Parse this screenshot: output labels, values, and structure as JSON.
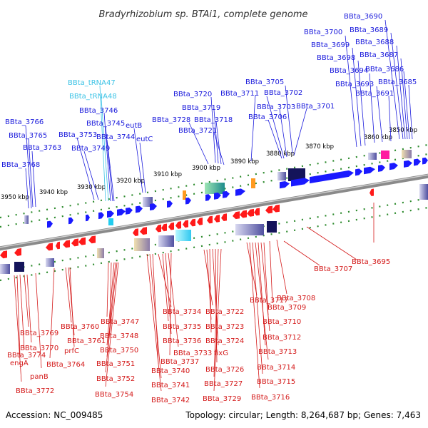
{
  "title": "Bradyrhizobium sp. BTAi1, complete genome",
  "footer": {
    "accession": "Accession: NC_009485",
    "summary": "Topology: circular; Length: 8,264,687 bp; Genes: 7,463"
  },
  "colors": {
    "forward_label": "#1a1adc",
    "reverse_label": "#d41a1a",
    "trna_label": "#3cc3e6",
    "forward_arrow": "#1a1aff",
    "reverse_arrow": "#ff1a1a",
    "backbone": "#8a8a8a",
    "ticks": "#2e8b2e"
  },
  "kbp_ticks": [
    "3850 kbp",
    "3860 kbp",
    "3870 kbp",
    "3880 kbp",
    "3890 kbp",
    "3900 kbp",
    "3910 kbp",
    "3920 kbp",
    "3930 kbp",
    "3940 kbp",
    "3950 kbp"
  ],
  "forward_labels": [
    "BBta_3690",
    "BBta_3700",
    "BBta_3689",
    "BBta_3699",
    "BBta_3688",
    "BBta_3698",
    "BBta_3687",
    "BBta_3694",
    "BBta_3686",
    "BBta_3693",
    "BBta_3685",
    "BBta_3691",
    "BBta_3705",
    "BBta_3720",
    "BBta_3711",
    "BBta_3702",
    "BBta_3719",
    "BBta_3703",
    "BBta_3701",
    "BBta_3718",
    "BBta_3706",
    "BBta_3728",
    "BBta_3721",
    "BBta_tRNA47",
    "BBta_tRNA48",
    "BBta_3746",
    "eutB",
    "BBta_3766",
    "BBta_3745",
    "BBta_3765",
    "BBta_3753",
    "BBta_3744",
    "eutC",
    "BBta_3763",
    "BBta_3749",
    "BBta_3768"
  ],
  "reverse_labels": [
    "BBta_3695",
    "BBta_3707",
    "BBta_3717",
    "BBta_3708",
    "BBta_3734",
    "BBta_3722",
    "BBta_3709",
    "BBta_3747",
    "BBta_3710",
    "BBta_3760",
    "BBta_3735",
    "BBta_3723",
    "BBta_3769",
    "BBta_3748",
    "BBta_3761",
    "BBta_3736",
    "BBta_3724",
    "BBta_3712",
    "BBta_3770",
    "prfC",
    "BBta_3750",
    "BBta_3733",
    "fixG",
    "BBta_3713",
    "BBta_3774",
    "BBta_3764",
    "BBta_3751",
    "BBta_3737",
    "engA",
    "BBta_3714",
    "BBta_3740",
    "BBta_3726",
    "panB",
    "BBta_3752",
    "BBta_3715",
    "BBta_3741",
    "BBta_3727",
    "BBta_3772",
    "BBta_3754",
    "BBta_3716",
    "BBta_3742",
    "BBta_3729"
  ]
}
